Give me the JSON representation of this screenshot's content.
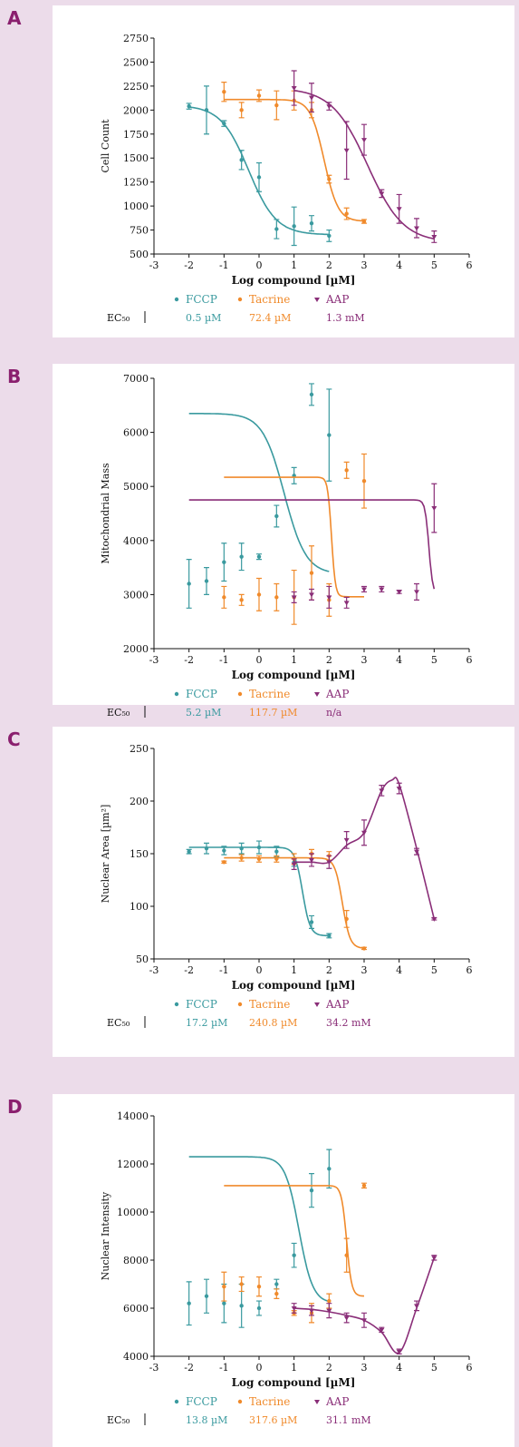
{
  "colors": {
    "FCCP": "#3a9a9f",
    "Tacrine": "#f08a2b",
    "AAP": "#8a2e78",
    "text": "#111111",
    "panel_bg": "#ecdcea"
  },
  "chart_data": [
    {
      "panel": "A",
      "type": "line",
      "xlabel": "Log compound [µM]",
      "ylabel": "Cell Count",
      "xlim": [
        -3,
        6
      ],
      "ylim": [
        500,
        2750
      ],
      "xticks": [
        -3,
        -2,
        -1,
        0,
        1,
        2,
        3,
        4,
        5,
        6
      ],
      "yticks": [
        500,
        750,
        1000,
        1250,
        1500,
        1750,
        2000,
        2250,
        2500,
        2750
      ],
      "series": [
        {
          "name": "FCCP",
          "ec50": "0.5 µM",
          "x": [
            -2,
            -1,
            -1.5,
            -0.5,
            0,
            0.5,
            1,
            1.5,
            2
          ],
          "y": [
            2040,
            1860,
            2000,
            1480,
            1300,
            760,
            790,
            820,
            690
          ],
          "err": [
            30,
            30,
            250,
            100,
            150,
            100,
            200,
            80,
            60
          ],
          "fit": {
            "top": 2050,
            "bottom": 700,
            "logec50": -0.3,
            "hill": 1.1,
            "xmin": -2,
            "xmax": 2
          }
        },
        {
          "name": "Tacrine",
          "ec50": "72.4 µM",
          "x": [
            -1,
            -0.5,
            0,
            0.5,
            1,
            1.5,
            2,
            2.5,
            3
          ],
          "y": [
            2190,
            2000,
            2150,
            2050,
            2100,
            2000,
            1280,
            920,
            840
          ],
          "err": [
            100,
            80,
            60,
            150,
            100,
            80,
            40,
            60,
            20
          ],
          "fit": {
            "top": 2110,
            "bottom": 840,
            "logec50": 1.86,
            "hill": 2.2,
            "xmin": -1,
            "xmax": 3
          }
        },
        {
          "name": "AAP",
          "ec50": "1.3 mM",
          "x": [
            1,
            1.5,
            2,
            2.5,
            3,
            3.5,
            4,
            4.5,
            5
          ],
          "y": [
            2230,
            2130,
            2040,
            1580,
            1690,
            1130,
            970,
            770,
            680
          ],
          "err": [
            180,
            150,
            40,
            300,
            160,
            40,
            150,
            100,
            60
          ],
          "fit": {
            "top": 2230,
            "bottom": 620,
            "logec50": 3.1,
            "hill": 0.85,
            "xmin": 1,
            "xmax": 5
          }
        }
      ]
    },
    {
      "panel": "B",
      "type": "line",
      "xlabel": "Log compound [µM]",
      "ylabel": "Mitochondrial Mass",
      "xlim": [
        -3,
        6
      ],
      "ylim": [
        2000,
        7000
      ],
      "xticks": [
        -3,
        -2,
        -1,
        0,
        1,
        2,
        3,
        4,
        5,
        6
      ],
      "yticks": [
        2000,
        3000,
        4000,
        5000,
        6000,
        7000
      ],
      "series": [
        {
          "name": "FCCP",
          "ec50": "5.2 µM",
          "x": [
            -2,
            -1.5,
            -1,
            -0.5,
            0,
            0.5,
            1,
            1.5,
            2
          ],
          "y": [
            3200,
            3250,
            3600,
            3700,
            3700,
            4450,
            5200,
            6700,
            5950
          ],
          "err": [
            450,
            250,
            350,
            250,
            50,
            200,
            150,
            200,
            850
          ],
          "fit": {
            "top": 6350,
            "bottom": 3380,
            "logec50": 0.72,
            "hill": 1.4,
            "xmin": -2,
            "xmax": 2
          }
        },
        {
          "name": "Tacrine",
          "ec50": "117.7 µM",
          "x": [
            -1,
            -0.5,
            0,
            0.5,
            1,
            1.5,
            2,
            2.5,
            3
          ],
          "y": [
            2950,
            2900,
            3000,
            2950,
            2950,
            3400,
            2900,
            5300,
            5100
          ],
          "err": [
            200,
            100,
            300,
            250,
            500,
            500,
            300,
            150,
            500
          ],
          "fit": {
            "top": 5170,
            "bottom": 2960,
            "logec50": 2.07,
            "hill": 8,
            "xmin": -1,
            "xmax": 3
          }
        },
        {
          "name": "AAP",
          "ec50": "n/a",
          "x": [
            1,
            1.5,
            2,
            2.5,
            3,
            3.5,
            4,
            4.5,
            5
          ],
          "y": [
            2950,
            3000,
            2950,
            2850,
            3100,
            3100,
            3050,
            3050,
            4600
          ],
          "err": [
            100,
            100,
            200,
            100,
            50,
            50,
            30,
            150,
            450
          ],
          "fit": {
            "top": 4750,
            "bottom": 3000,
            "logec50": 4.85,
            "hill": 8,
            "xmin": -2,
            "xmax": 5
          }
        }
      ]
    },
    {
      "panel": "C",
      "type": "line",
      "xlabel": "Log compound [µM]",
      "ylabel": "Nuclear Area [µm²]",
      "xlim": [
        -3,
        6
      ],
      "ylim": [
        50,
        250
      ],
      "xticks": [
        -3,
        -2,
        -1,
        0,
        1,
        2,
        3,
        4,
        5,
        6
      ],
      "yticks": [
        50,
        100,
        150,
        200,
        250
      ],
      "series": [
        {
          "name": "FCCP",
          "ec50": "17.2 µM",
          "x": [
            -2,
            -1.5,
            -1,
            -0.5,
            0,
            0.5,
            1,
            1.5,
            2
          ],
          "y": [
            152,
            155,
            153,
            155,
            156,
            152,
            142,
            85,
            72
          ],
          "err": [
            2,
            5,
            4,
            5,
            6,
            5,
            4,
            6,
            2
          ],
          "fit": {
            "top": 156,
            "bottom": 72,
            "logec50": 1.24,
            "hill": 4,
            "xmin": -2,
            "xmax": 2
          }
        },
        {
          "name": "Tacrine",
          "ec50": "240.8 µM",
          "x": [
            -1,
            -0.5,
            0,
            0.5,
            1,
            1.5,
            2,
            2.5,
            3
          ],
          "y": [
            142,
            146,
            145,
            145,
            145,
            150,
            148,
            88,
            60
          ],
          "err": [
            1,
            3,
            3,
            3,
            5,
            4,
            4,
            8,
            1
          ],
          "fit": {
            "top": 146,
            "bottom": 60,
            "logec50": 2.38,
            "hill": 4,
            "xmin": -1,
            "xmax": 3
          }
        },
        {
          "name": "AAP",
          "ec50": "34.2 mM",
          "x": [
            1,
            1.5,
            2,
            2.5,
            3,
            3.5,
            4,
            4.5,
            5
          ],
          "y": [
            140,
            144,
            142,
            163,
            170,
            210,
            212,
            152,
            88
          ],
          "err": [
            5,
            6,
            6,
            8,
            12,
            5,
            5,
            3,
            1
          ],
          "curve": [
            [
              1,
              142
            ],
            [
              1.5,
              142
            ],
            [
              2,
              142
            ],
            [
              2.5,
              158
            ],
            [
              3,
              170
            ],
            [
              3.5,
              210
            ],
            [
              3.8,
              220
            ],
            [
              4,
              216
            ],
            [
              4.5,
              155
            ],
            [
              5,
              88
            ]
          ]
        }
      ]
    },
    {
      "panel": "D",
      "type": "line",
      "xlabel": "Log compound [µM]",
      "ylabel": "Nuclear Intensity",
      "xlim": [
        -3,
        6
      ],
      "ylim": [
        4000,
        14000
      ],
      "xticks": [
        -3,
        -2,
        -1,
        0,
        1,
        2,
        3,
        4,
        5,
        6
      ],
      "yticks": [
        4000,
        6000,
        8000,
        10000,
        12000,
        14000
      ],
      "series": [
        {
          "name": "FCCP",
          "ec50": "13.8 µM",
          "x": [
            -2,
            -1.5,
            -1,
            -0.5,
            0,
            0.5,
            1,
            1.5,
            2
          ],
          "y": [
            6200,
            6500,
            6200,
            6100,
            6000,
            7000,
            8200,
            10900,
            11800
          ],
          "err": [
            900,
            700,
            800,
            900,
            300,
            200,
            500,
            700,
            800
          ],
          "fit": {
            "top": 12300,
            "bottom": 6200,
            "logec50": 1.14,
            "hill": 2.2,
            "xmin": -2,
            "xmax": 2
          }
        },
        {
          "name": "Tacrine",
          "ec50": "317.6 µM",
          "x": [
            -1,
            -0.5,
            0,
            0.5,
            1,
            1.5,
            2,
            2.5,
            3
          ],
          "y": [
            6900,
            7000,
            6900,
            6600,
            5800,
            5800,
            6300,
            8200,
            11100
          ],
          "err": [
            600,
            300,
            400,
            200,
            100,
            400,
            300,
            700,
            100
          ],
          "fit": {
            "top": 11100,
            "bottom": 6500,
            "logec50": 2.5,
            "hill": 6,
            "xmin": -1,
            "xmax": 3
          }
        },
        {
          "name": "AAP",
          "ec50": "31.1 mM",
          "x": [
            1,
            1.5,
            2,
            2.5,
            3,
            3.5,
            4,
            4.5,
            5
          ],
          "y": [
            6000,
            5900,
            5900,
            5600,
            5500,
            5100,
            4200,
            6100,
            8100
          ],
          "err": [
            200,
            200,
            300,
            200,
            300,
            100,
            100,
            200,
            100
          ],
          "curve": [
            [
              1,
              6000
            ],
            [
              1.5,
              5950
            ],
            [
              2,
              5850
            ],
            [
              2.5,
              5700
            ],
            [
              3,
              5500
            ],
            [
              3.5,
              5000
            ],
            [
              4,
              4150
            ],
            [
              4.5,
              6000
            ],
            [
              5,
              8100
            ]
          ]
        }
      ]
    }
  ],
  "panels": [
    {
      "letter": "A"
    },
    {
      "letter": "B"
    },
    {
      "letter": "C"
    },
    {
      "letter": "D"
    }
  ],
  "legend": {
    "ec50_label": "EC₅₀",
    "names": [
      "FCCP",
      "Tacrine",
      "AAP"
    ]
  }
}
